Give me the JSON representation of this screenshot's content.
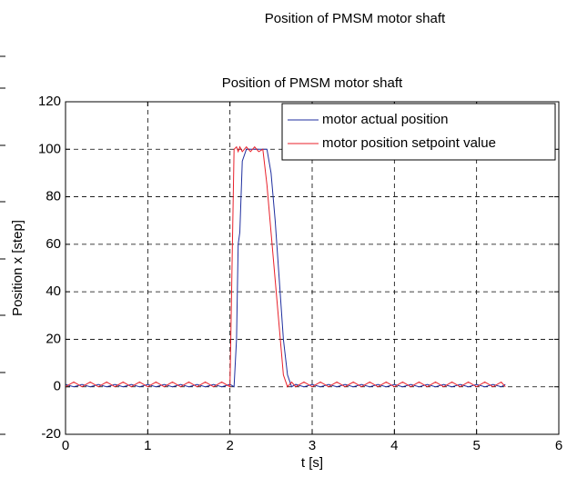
{
  "chart_data": {
    "type": "line",
    "figure_title": "Position of PMSM motor shaft",
    "title": "Position of PMSM motor shaft",
    "xlabel": "t [s]",
    "ylabel": "Position x [step]",
    "x": [
      0,
      0.1,
      0.2,
      0.3,
      0.4,
      0.5,
      0.6,
      0.7,
      0.8,
      0.9,
      1.0,
      1.1,
      1.2,
      1.3,
      1.4,
      1.5,
      1.6,
      1.7,
      1.8,
      1.9,
      2.0,
      2.05,
      2.08,
      2.1,
      2.12,
      2.15,
      2.2,
      2.25,
      2.3,
      2.35,
      2.4,
      2.45,
      2.5,
      2.55,
      2.6,
      2.65,
      2.7,
      2.75,
      2.8,
      2.9,
      3.0,
      3.1,
      3.2,
      3.3,
      3.4,
      3.5,
      3.6,
      3.7,
      3.8,
      3.9,
      4.0,
      4.1,
      4.2,
      4.3,
      4.4,
      4.5,
      4.6,
      4.7,
      4.8,
      4.9,
      5.0,
      5.1,
      5.2,
      5.3,
      5.35
    ],
    "series": [
      {
        "name": "motor actual position",
        "color": "#1f2f9f",
        "values": [
          1,
          0,
          1,
          0,
          1,
          0,
          1,
          0,
          1,
          0,
          1,
          0,
          1,
          0,
          1,
          0,
          1,
          0,
          1,
          0,
          1,
          0,
          20,
          60,
          65,
          95,
          100,
          100,
          100,
          100,
          100,
          100,
          90,
          70,
          45,
          20,
          5,
          0,
          1,
          0,
          1,
          0,
          1,
          0,
          1,
          0,
          1,
          0,
          1,
          0,
          1,
          0,
          1,
          0,
          1,
          0,
          1,
          0,
          1,
          0,
          1,
          0,
          1,
          0,
          1
        ]
      },
      {
        "name": "motor position setpoint value",
        "color": "#e8202a",
        "values": [
          0,
          2,
          0,
          2,
          0,
          2,
          0,
          2,
          0,
          2,
          0,
          2,
          0,
          2,
          0,
          2,
          0,
          2,
          0,
          2,
          0,
          100,
          101,
          99,
          101,
          99,
          101,
          99,
          101,
          99,
          100,
          85,
          65,
          45,
          25,
          5,
          0,
          2,
          0,
          2,
          0,
          2,
          0,
          2,
          0,
          2,
          0,
          2,
          0,
          2,
          0,
          2,
          0,
          2,
          0,
          2,
          0,
          2,
          0,
          2,
          0,
          2,
          0,
          2,
          0
        ]
      }
    ],
    "xlim": [
      0,
      6
    ],
    "xticks": [
      0,
      1,
      2,
      3,
      4,
      5,
      6
    ],
    "ylim": [
      -20,
      120
    ],
    "yticks": [
      -20,
      0,
      20,
      40,
      60,
      80,
      100,
      120
    ],
    "grid": true,
    "legend": "top-right"
  }
}
